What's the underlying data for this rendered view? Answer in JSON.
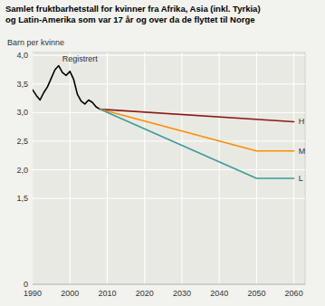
{
  "chart_data": {
    "type": "line",
    "title": "Samlet fruktbarhetstall for kvinner fra Afrika, Asia (inkl. Tyrkia)\nog Latin-Amerika som var 17 år og over da de flyttet til Norge",
    "y_label": "Barn per kvinne",
    "xlim": [
      1990,
      2063
    ],
    "ylim": [
      0,
      4.05
    ],
    "xticks": [
      1990,
      2000,
      2010,
      2020,
      2030,
      2040,
      2050,
      2060
    ],
    "yticks": [
      0,
      {
        "value": 1.5,
        "label": "1,5"
      },
      {
        "value": 2.0,
        "label": "2,0"
      },
      {
        "value": 2.5,
        "label": "2,5"
      },
      {
        "value": 3.0,
        "label": "3,0"
      },
      {
        "value": 3.5,
        "label": "3,5"
      },
      {
        "value": 4.0,
        "label": "4,0"
      }
    ],
    "grid": true,
    "series": [
      {
        "name": "Registrert",
        "color": "#000000",
        "x": [
          1990,
          1991,
          1992,
          1993,
          1994,
          1995,
          1996,
          1997,
          1998,
          1999,
          2000,
          2001,
          2002,
          2003,
          2004,
          2005,
          2006,
          2007,
          2008
        ],
        "values": [
          3.4,
          3.3,
          3.22,
          3.35,
          3.45,
          3.6,
          3.75,
          3.82,
          3.7,
          3.65,
          3.72,
          3.58,
          3.32,
          3.2,
          3.15,
          3.22,
          3.18,
          3.1,
          3.06
        ]
      },
      {
        "name": "H",
        "color": "#8B1A1A",
        "x": [
          2008,
          2060
        ],
        "values": [
          3.06,
          2.84
        ]
      },
      {
        "name": "M",
        "color": "#FF8C00",
        "x": [
          2008,
          2050,
          2060
        ],
        "values": [
          3.06,
          2.33,
          2.33
        ]
      },
      {
        "name": "L",
        "color": "#3A9C9C",
        "x": [
          2008,
          2050,
          2060
        ],
        "values": [
          3.06,
          1.85,
          1.85
        ]
      }
    ]
  }
}
